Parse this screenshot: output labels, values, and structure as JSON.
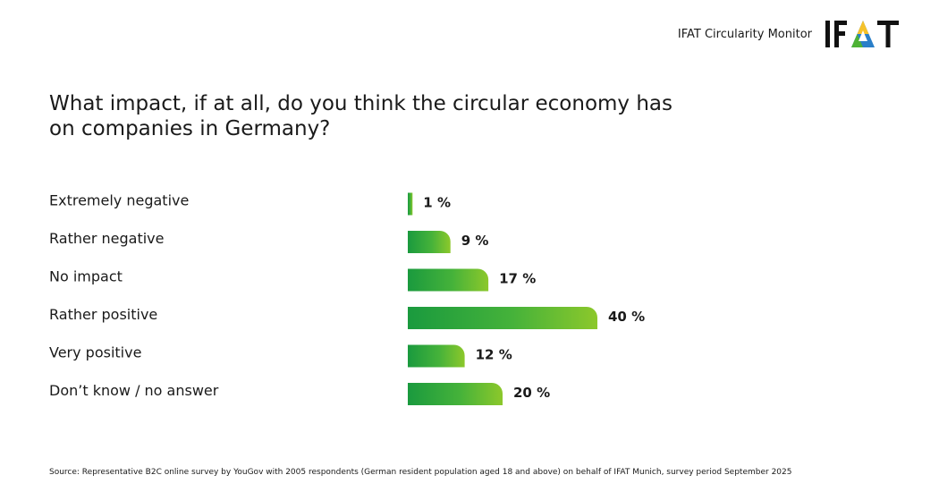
{
  "header": {
    "monitor_label": "IFAT Circularity Monitor",
    "logo_text": "IFAT"
  },
  "colors": {
    "bar_gradient_start": "#1a9a3e",
    "bar_gradient_mid": "#45b23a",
    "bar_gradient_end": "#8cc82b",
    "logo_blue": "#2a7fc9",
    "logo_green": "#4eb235",
    "logo_yellow": "#f6c22a",
    "text": "#1a1a1a"
  },
  "chart_data": {
    "type": "bar",
    "orientation": "horizontal",
    "title": "What impact, if at all, do you think the circular economy has on companies in Germany?",
    "categories": [
      "Extremely negative",
      "Rather negative",
      "No impact",
      "Rather positive",
      "Very positive",
      "Don’t know / no answer"
    ],
    "values": [
      1,
      9,
      17,
      40,
      12,
      20
    ],
    "value_labels": [
      "1 %",
      "9 %",
      "17 %",
      "40 %",
      "12 %",
      "20 %"
    ],
    "unit": "%",
    "grid": false,
    "legend": "none"
  },
  "footer": {
    "source": "Source: Representative B2C online survey by YouGov with 2005 respondents (German resident population aged 18 and above) on behalf of IFAT Munich, survey period September 2025"
  }
}
